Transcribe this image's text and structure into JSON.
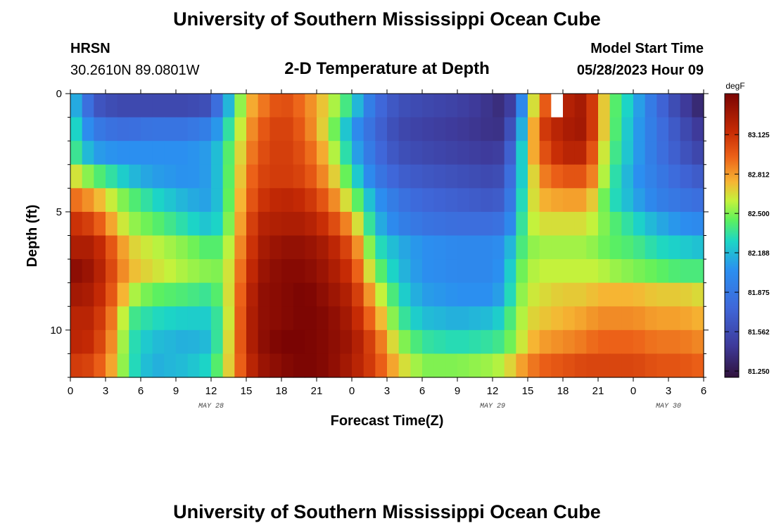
{
  "page": {
    "title": "University of Southern Mississippi Ocean Cube",
    "footer_title": "University of Southern Mississippi Ocean Cube"
  },
  "station": {
    "name": "HRSN",
    "coords": "30.2610N  89.0801W"
  },
  "model": {
    "label": "Model Start Time",
    "start": "05/28/2023 Hour 09"
  },
  "chart_data": {
    "type": "heatmap",
    "title": "2-D Temperature at Depth",
    "xlabel": "Forecast Time(Z)",
    "ylabel": "Depth (ft)",
    "x_range_hours": [
      0,
      54
    ],
    "x_step_hours": 1,
    "x_tick_labels": [
      "0",
      "3",
      "6",
      "9",
      "12",
      "15",
      "18",
      "21",
      "0",
      "3",
      "6",
      "9",
      "12",
      "15",
      "18",
      "21",
      "0",
      "3",
      "6"
    ],
    "date_labels": [
      {
        "text": "MAY 28",
        "hour": 12
      },
      {
        "text": "MAY 29",
        "hour": 36
      },
      {
        "text": "MAY 30",
        "hour": 51
      }
    ],
    "y_range_ft": [
      0,
      12
    ],
    "y_tick_labels": [
      "0",
      "5",
      "10"
    ],
    "depth_levels_ft": [
      0.5,
      1.5,
      2.5,
      3.5,
      4.5,
      5.5,
      6.5,
      7.5,
      8.5,
      9.5,
      10.5,
      11.5
    ],
    "colorbar": {
      "unit": "degF",
      "vmin": 81.2,
      "vmax": 83.45,
      "ticks": [
        "83.125",
        "82.812",
        "82.500",
        "82.188",
        "81.875",
        "81.562",
        "81.250"
      ],
      "stops": [
        {
          "v": 81.2,
          "c": "#30123b"
        },
        {
          "v": 81.45,
          "c": "#3e3a9a"
        },
        {
          "v": 81.75,
          "c": "#3f67d9"
        },
        {
          "v": 82.05,
          "c": "#2b8ff0"
        },
        {
          "v": 82.28,
          "c": "#1cd6c6"
        },
        {
          "v": 82.45,
          "c": "#5ef15c"
        },
        {
          "v": 82.6,
          "c": "#c4f23c"
        },
        {
          "v": 82.75,
          "c": "#f6b533"
        },
        {
          "v": 82.95,
          "c": "#ec6118"
        },
        {
          "v": 83.15,
          "c": "#c62b05"
        },
        {
          "v": 83.45,
          "c": "#7a0403"
        }
      ]
    },
    "keyframe_hours": [
      0,
      2,
      4,
      5,
      7,
      10,
      12,
      13,
      15,
      16,
      18,
      20,
      22,
      24,
      26,
      28,
      30,
      33,
      36,
      37,
      38,
      39,
      40,
      42,
      44,
      45,
      46,
      48,
      50,
      52,
      54
    ],
    "values_by_depth": [
      [
        82.3,
        81.65,
        81.55,
        81.55,
        81.55,
        81.55,
        81.6,
        82.0,
        82.7,
        82.85,
        83.05,
        82.9,
        82.65,
        82.3,
        81.8,
        81.6,
        81.55,
        81.5,
        81.4,
        81.35,
        81.6,
        82.4,
        82.9,
        83.2,
        83.3,
        82.9,
        82.5,
        82.2,
        81.8,
        81.5,
        81.3
      ],
      [
        82.4,
        81.9,
        81.8,
        81.8,
        81.85,
        81.85,
        81.95,
        82.2,
        82.75,
        82.95,
        83.1,
        82.95,
        82.6,
        82.1,
        81.75,
        81.55,
        81.5,
        81.45,
        81.4,
        81.4,
        81.8,
        82.5,
        83.05,
        83.25,
        83.3,
        82.9,
        82.5,
        82.15,
        81.85,
        81.6,
        81.4
      ],
      [
        82.45,
        82.1,
        82.05,
        82.05,
        82.05,
        82.05,
        82.1,
        82.3,
        82.8,
        83.0,
        83.1,
        83.0,
        82.7,
        82.2,
        81.8,
        81.6,
        81.55,
        81.5,
        81.45,
        81.5,
        81.9,
        82.6,
        82.95,
        83.2,
        83.2,
        82.8,
        82.45,
        82.15,
        81.85,
        81.65,
        81.5
      ],
      [
        82.7,
        82.45,
        82.3,
        82.2,
        82.1,
        82.05,
        82.1,
        82.3,
        82.85,
        83.05,
        83.1,
        83.05,
        82.8,
        82.35,
        81.9,
        81.7,
        81.65,
        81.6,
        81.55,
        81.6,
        82.0,
        82.5,
        82.85,
        83.0,
        83.0,
        82.75,
        82.4,
        82.1,
        81.9,
        81.75,
        81.65
      ],
      [
        82.95,
        82.8,
        82.55,
        82.45,
        82.3,
        82.15,
        82.1,
        82.3,
        82.9,
        83.1,
        83.2,
        83.15,
        82.95,
        82.55,
        82.1,
        81.85,
        81.75,
        81.7,
        81.65,
        81.7,
        82.05,
        82.55,
        82.75,
        82.8,
        82.8,
        82.6,
        82.35,
        82.15,
        81.95,
        81.85,
        81.8
      ],
      [
        83.15,
        83.05,
        82.7,
        82.55,
        82.45,
        82.3,
        82.2,
        82.35,
        82.95,
        83.2,
        83.25,
        83.25,
        83.1,
        82.8,
        82.2,
        81.95,
        81.85,
        81.8,
        81.8,
        81.85,
        82.15,
        82.55,
        82.65,
        82.65,
        82.65,
        82.55,
        82.45,
        82.3,
        82.15,
        82.05,
        82.0
      ],
      [
        83.25,
        83.25,
        82.9,
        82.7,
        82.6,
        82.5,
        82.4,
        82.45,
        83.0,
        83.25,
        83.35,
        83.35,
        83.25,
        83.0,
        82.35,
        82.15,
        82.05,
        82.0,
        82.0,
        82.05,
        82.3,
        82.5,
        82.55,
        82.55,
        82.55,
        82.5,
        82.45,
        82.4,
        82.3,
        82.25,
        82.2
      ],
      [
        83.4,
        83.3,
        82.95,
        82.75,
        82.65,
        82.55,
        82.5,
        82.5,
        83.05,
        83.3,
        83.4,
        83.4,
        83.3,
        83.1,
        82.5,
        82.2,
        82.05,
        82.0,
        82.0,
        82.1,
        82.4,
        82.55,
        82.6,
        82.6,
        82.6,
        82.6,
        82.55,
        82.5,
        82.45,
        82.4,
        82.4
      ],
      [
        83.3,
        83.25,
        82.9,
        82.6,
        82.45,
        82.4,
        82.35,
        82.5,
        83.1,
        83.35,
        83.4,
        83.45,
        83.35,
        83.2,
        82.7,
        82.3,
        82.1,
        82.05,
        82.05,
        82.15,
        82.45,
        82.6,
        82.65,
        82.7,
        82.7,
        82.75,
        82.75,
        82.75,
        82.7,
        82.7,
        82.65
      ],
      [
        83.2,
        83.2,
        82.8,
        82.4,
        82.3,
        82.25,
        82.25,
        82.45,
        83.15,
        83.35,
        83.4,
        83.45,
        83.4,
        83.25,
        82.85,
        82.4,
        82.2,
        82.15,
        82.2,
        82.3,
        82.5,
        82.65,
        82.7,
        82.75,
        82.8,
        82.85,
        82.85,
        82.85,
        82.8,
        82.8,
        82.75
      ],
      [
        83.2,
        83.15,
        82.75,
        82.35,
        82.2,
        82.15,
        82.2,
        82.5,
        83.15,
        83.35,
        83.45,
        83.45,
        83.4,
        83.3,
        83.0,
        82.55,
        82.35,
        82.3,
        82.35,
        82.4,
        82.55,
        82.7,
        82.8,
        82.85,
        82.9,
        82.95,
        82.95,
        82.95,
        82.9,
        82.9,
        82.85
      ],
      [
        83.1,
        83.05,
        82.7,
        82.35,
        82.15,
        82.2,
        82.3,
        82.55,
        83.1,
        83.3,
        83.4,
        83.45,
        83.4,
        83.25,
        83.05,
        82.7,
        82.5,
        82.5,
        82.55,
        82.6,
        82.75,
        82.85,
        82.95,
        83.0,
        83.05,
        83.05,
        83.05,
        83.05,
        83.0,
        83.0,
        82.95
      ]
    ],
    "missing_cells": [
      {
        "hour": 41,
        "depth_index": 0
      }
    ]
  }
}
